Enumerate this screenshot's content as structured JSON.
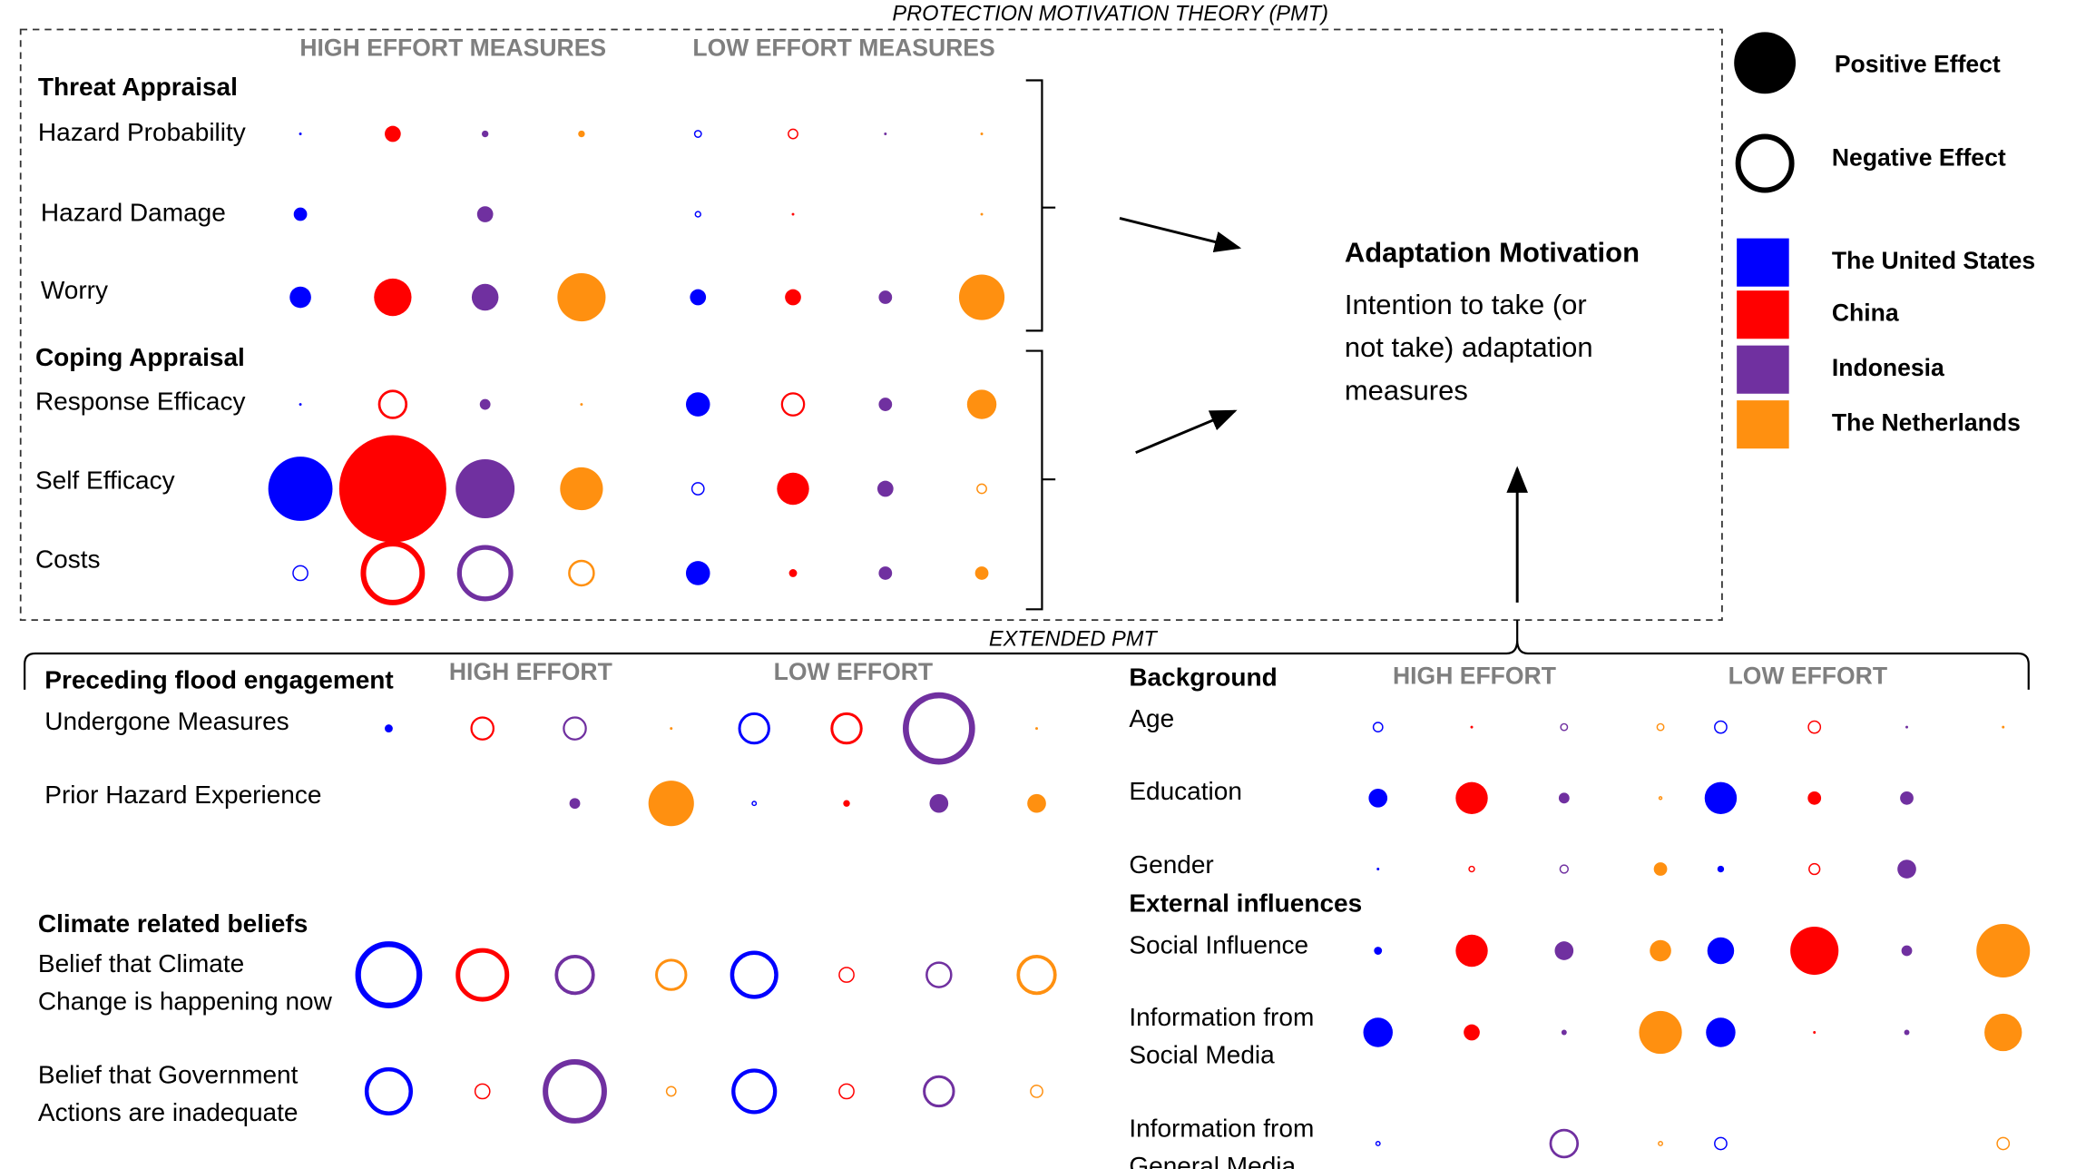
{
  "pmt": {
    "title": "PROTECTION MOTIVATION THEORY (PMT)",
    "high_header": "HIGH EFFORT MEASURES",
    "low_header": "LOW EFFORT MEASURES",
    "groups": [
      {
        "label": "Threat Appraisal",
        "rows": [
          {
            "label": "Hazard Probability",
            "effects": [
              1,
              6,
              2.5,
              2.5,
              -3,
              -4,
              1,
              1
            ]
          },
          {
            "label": "Hazard Damage",
            "effects": [
              5,
              null,
              6,
              null,
              -2.5,
              1,
              null,
              1
            ]
          },
          {
            "label": "Worry",
            "effects": [
              8,
              14,
              10,
              18,
              6,
              6,
              5,
              17
            ]
          }
        ]
      },
      {
        "label": "Coping Appraisal",
        "rows": [
          {
            "label": "Response Efficacy",
            "effects": [
              1,
              -11,
              4,
              1,
              9,
              -9,
              5,
              11
            ]
          },
          {
            "label": "Self Efficacy",
            "effects": [
              24,
              40,
              22,
              16,
              -5,
              12,
              6,
              -4
            ]
          },
          {
            "label": "Costs",
            "effects": [
              -6,
              -24,
              -21,
              -10,
              9,
              3,
              5,
              5
            ]
          }
        ]
      }
    ]
  },
  "outcome": {
    "title": "Adaptation Motivation",
    "description": [
      "Intention to take (or",
      "not take) adaptation",
      "measures"
    ]
  },
  "legend": {
    "positive": "Positive Effect",
    "negative": "Negative Effect",
    "countries": [
      {
        "name": "The United States",
        "color": "#0000ff"
      },
      {
        "name": "China",
        "color": "#ff0000"
      },
      {
        "name": "Indonesia",
        "color": "#7030a0"
      },
      {
        "name": "The Netherlands",
        "color": "#ff9010"
      }
    ]
  },
  "extended": {
    "title": "EXTENDED PMT",
    "left": {
      "high_header": "HIGH EFFORT",
      "low_header": "LOW EFFORT",
      "groups": [
        {
          "label": "Preceding flood engagement",
          "rows": [
            {
              "label": "Undergone Measures",
              "effects": [
                3,
                -9,
                -9,
                1,
                -12,
                -12,
                -27,
                1
              ]
            },
            {
              "label": "Prior Hazard Experience",
              "effects": [
                null,
                null,
                4,
                17,
                -2,
                2.5,
                7,
                7
              ]
            }
          ]
        },
        {
          "label": "Climate related beliefs",
          "rows": [
            {
              "label": [
                "Belief that Climate",
                "Change is happening now"
              ],
              "effects": [
                -25,
                -20,
                -15,
                -12,
                -18,
                -6,
                -10,
                -15
              ]
            },
            {
              "label": [
                "Belief that Government",
                "Actions are inadequate"
              ],
              "effects": [
                -18,
                -6,
                -24,
                -4,
                -17,
                -6,
                -12,
                -5
              ]
            }
          ]
        }
      ]
    },
    "right": {
      "high_header": "HIGH EFFORT",
      "low_header": "LOW EFFORT",
      "groups": [
        {
          "label": "Background",
          "rows": [
            {
              "label": "Age",
              "effects": [
                -4,
                1,
                -3,
                -3,
                -5,
                -5,
                1,
                1
              ]
            },
            {
              "label": "Education",
              "effects": [
                7,
                12,
                4,
                -1.5,
                12,
                5,
                5,
                null
              ]
            },
            {
              "label": "Gender",
              "effects": [
                1,
                -2.5,
                -3.5,
                5,
                2.5,
                -4.5,
                7,
                null
              ]
            }
          ]
        },
        {
          "label": "External influences",
          "rows": [
            {
              "label": "Social Influence",
              "effects": [
                3,
                12,
                7,
                8,
                10,
                18,
                4,
                20
              ]
            },
            {
              "label": [
                "Information from",
                "Social Media"
              ],
              "effects": [
                11,
                6,
                2,
                16,
                11,
                1,
                2,
                14
              ]
            },
            {
              "label": [
                "Information from",
                "General Media"
              ],
              "effects": [
                -2,
                null,
                -11,
                -2,
                -5,
                null,
                null,
                -5
              ]
            }
          ]
        }
      ]
    }
  }
}
